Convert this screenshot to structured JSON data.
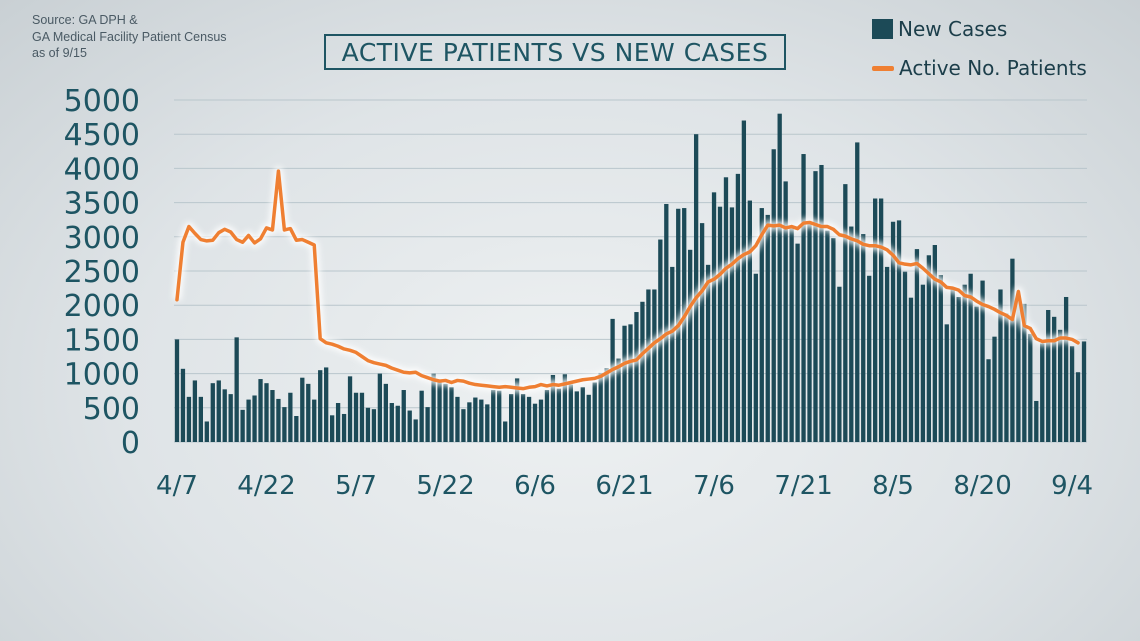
{
  "source": {
    "line1": "Source: GA DPH &",
    "line2": "GA Medical Facility Patient Census",
    "line3": "as of 9/15"
  },
  "title": "ACTIVE PATIENTS VS NEW CASES",
  "legend": {
    "bars_label": "New Cases",
    "line_label": "Active No. Patients"
  },
  "colors": {
    "bars": "#1c4a57",
    "line": "#ef7f32",
    "grid": "#b9c6cc",
    "text": "#1e5563"
  },
  "chart_data": {
    "type": "bar",
    "title": "ACTIVE PATIENTS VS NEW CASES",
    "xlabel": "",
    "ylabel": "",
    "ylim": [
      0,
      5000
    ],
    "yticks": [
      "5000",
      "4500",
      "4000",
      "3500",
      "3000",
      "2500",
      "2000",
      "1500",
      "1000",
      "500",
      "0"
    ],
    "xticks": [
      "4/7",
      "4/22",
      "5/7",
      "5/22",
      "6/6",
      "6/21",
      "7/6",
      "7/21",
      "8/5",
      "8/20",
      "9/4"
    ],
    "x_start": "4/7",
    "grid": true,
    "legend_position": "top-right",
    "series": [
      {
        "name": "New Cases",
        "type": "bar",
        "values": [
          1500,
          1070,
          660,
          900,
          660,
          300,
          860,
          900,
          770,
          700,
          1530,
          470,
          620,
          680,
          920,
          860,
          760,
          630,
          510,
          720,
          380,
          940,
          850,
          620,
          1050,
          1090,
          390,
          570,
          410,
          960,
          720,
          720,
          500,
          480,
          1000,
          850,
          570,
          530,
          760,
          460,
          330,
          750,
          510,
          1000,
          870,
          850,
          800,
          660,
          480,
          580,
          650,
          620,
          550,
          760,
          750,
          300,
          700,
          930,
          700,
          660,
          560,
          620,
          760,
          980,
          780,
          990,
          840,
          740,
          800,
          690,
          870,
          1010,
          1080,
          1800,
          1220,
          1700,
          1720,
          1900,
          2050,
          2230,
          2230,
          2960,
          3480,
          2560,
          3410,
          3420,
          2810,
          4500,
          3200,
          2590,
          3650,
          3440,
          3870,
          3430,
          3920,
          4700,
          3530,
          2460,
          3420,
          3320,
          4280,
          4800,
          3810,
          3120,
          2900,
          4210,
          3200,
          3960,
          4050,
          3090,
          2980,
          2270,
          3770,
          3150,
          4380,
          3040,
          2430,
          3560,
          3560,
          2560,
          3220,
          3240,
          2490,
          2110,
          2820,
          2300,
          2730,
          2880,
          2440,
          1720,
          2240,
          2120,
          2300,
          2460,
          1980,
          2360,
          1210,
          1540,
          2230,
          1880,
          2680,
          2110,
          2020,
          1580,
          600,
          1440,
          1930,
          1830,
          1640,
          2120,
          1400,
          1020,
          1470
        ]
      },
      {
        "name": "Active No. Patients",
        "type": "line",
        "values": [
          2080,
          2920,
          3150,
          3050,
          2960,
          2940,
          2950,
          3060,
          3110,
          3070,
          2960,
          2920,
          3020,
          2910,
          2970,
          3130,
          3100,
          3960,
          3100,
          3120,
          2950,
          2960,
          2920,
          2880,
          1510,
          1450,
          1430,
          1400,
          1360,
          1340,
          1310,
          1250,
          1190,
          1160,
          1140,
          1120,
          1080,
          1050,
          1020,
          1010,
          1020,
          970,
          940,
          910,
          890,
          900,
          870,
          900,
          890,
          860,
          840,
          830,
          820,
          810,
          800,
          810,
          800,
          790,
          780,
          800,
          810,
          840,
          820,
          840,
          830,
          850,
          870,
          890,
          910,
          920,
          930,
          960,
          1010,
          1060,
          1100,
          1150,
          1180,
          1200,
          1290,
          1370,
          1450,
          1510,
          1580,
          1620,
          1700,
          1830,
          1980,
          2110,
          2210,
          2340,
          2380,
          2450,
          2540,
          2600,
          2680,
          2740,
          2780,
          2870,
          3030,
          3170,
          3160,
          3170,
          3130,
          3150,
          3120,
          3200,
          3210,
          3180,
          3150,
          3150,
          3110,
          3030,
          3010,
          2970,
          2940,
          2890,
          2870,
          2870,
          2850,
          2810,
          2730,
          2620,
          2600,
          2590,
          2610,
          2540,
          2460,
          2380,
          2340,
          2260,
          2250,
          2220,
          2140,
          2120,
          2060,
          2010,
          1980,
          1940,
          1890,
          1850,
          1790,
          2200,
          1700,
          1660,
          1510,
          1470,
          1480,
          1480,
          1520,
          1520,
          1500,
          1450
        ]
      }
    ]
  }
}
